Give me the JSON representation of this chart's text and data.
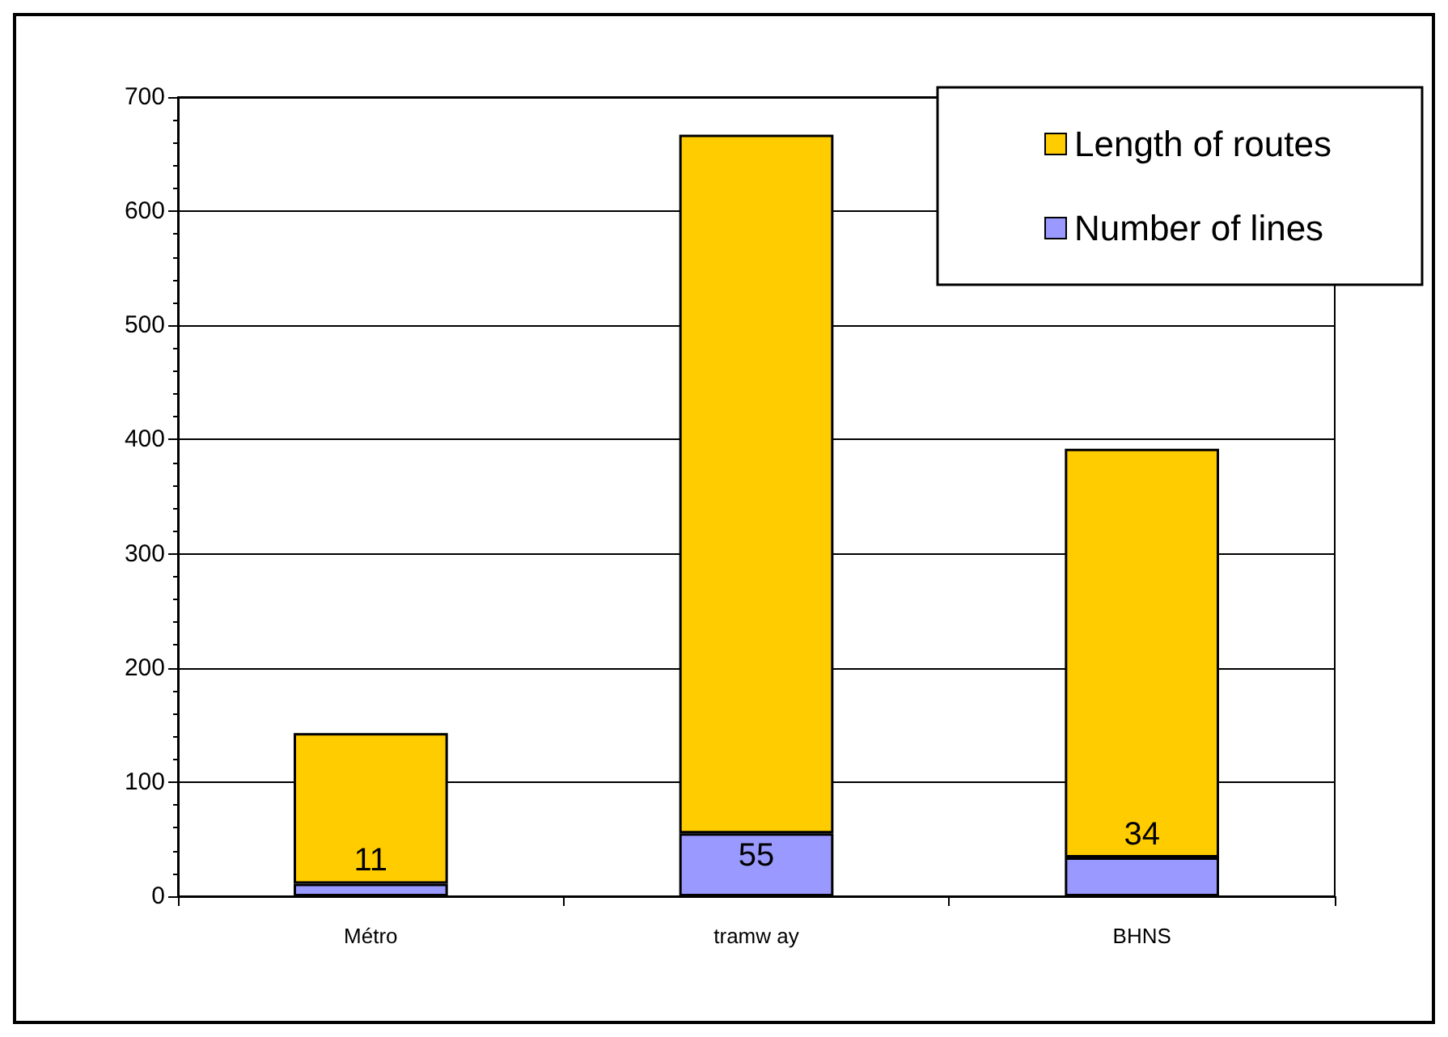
{
  "chart_data": {
    "type": "bar",
    "stacked": true,
    "categories": [
      "Métro",
      "tramw ay",
      "BHNS"
    ],
    "series": [
      {
        "name": "Number of lines",
        "color": "#9999ff",
        "values": [
          11,
          55,
          34
        ],
        "value_labels": [
          "11",
          "55",
          "34"
        ]
      },
      {
        "name": "Length of routes",
        "color": "#ffcc00",
        "values": [
          132,
          612,
          358
        ]
      }
    ],
    "ylim": [
      0,
      700
    ],
    "yticks": [
      0,
      100,
      200,
      300,
      400,
      500,
      600,
      700
    ],
    "grid": "y",
    "legend": "top right"
  }
}
